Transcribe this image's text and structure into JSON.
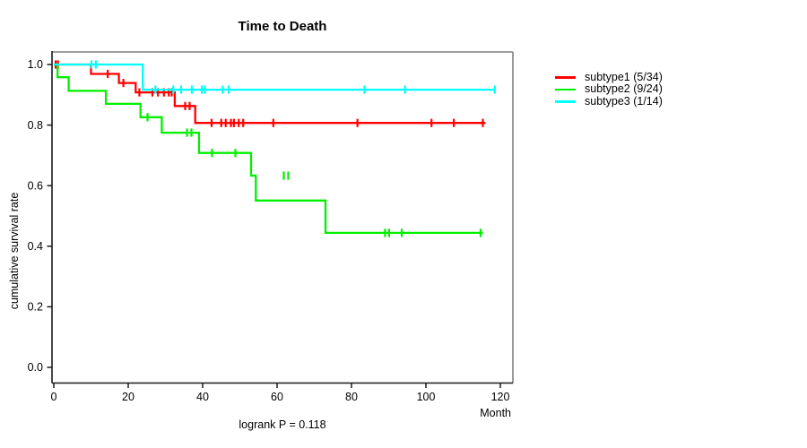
{
  "chart": {
    "title": "Time to Death",
    "ylabel": "cumulative survival rate",
    "xunit": "Month",
    "footnote": "logrank P = 0.118"
  },
  "chart_data": {
    "type": "line",
    "variant": "kaplan-meier-step",
    "title": "Time to Death",
    "xlabel": "Month",
    "ylabel": "cumulative survival rate",
    "annotation": "logrank P = 0.118",
    "xlim": [
      0,
      120
    ],
    "ylim": [
      0.0,
      1.0
    ],
    "x_ticks": [
      0,
      20,
      40,
      60,
      80,
      100,
      120
    ],
    "y_ticks": [
      0.0,
      0.2,
      0.4,
      0.6,
      0.8,
      1.0
    ],
    "grid": false,
    "legend_position": "right-outside",
    "frame_color_top_right": "#909090",
    "axis_color": "#1a1a1a",
    "series": [
      {
        "name": "subtype1",
        "legend_label": "subtype1 (5/34)",
        "color": "#ff0000",
        "n": 34,
        "events": 5,
        "steps": [
          [
            0,
            1.0
          ],
          [
            10,
            0.969
          ],
          [
            17.5,
            0.939
          ],
          [
            22,
            0.908
          ],
          [
            32.5,
            0.863
          ],
          [
            38,
            0.807
          ]
        ],
        "end_month": 116,
        "censor_marks": [
          [
            0.5,
            1.0
          ],
          [
            1.1,
            1.0
          ],
          [
            14.5,
            0.969
          ],
          [
            18.7,
            0.939
          ],
          [
            23,
            0.908
          ],
          [
            26.5,
            0.908
          ],
          [
            28,
            0.908
          ],
          [
            29.6,
            0.908
          ],
          [
            30.9,
            0.908
          ],
          [
            31.7,
            0.908
          ],
          [
            35.3,
            0.863
          ],
          [
            36.5,
            0.863
          ],
          [
            42.4,
            0.807
          ],
          [
            45,
            0.807
          ],
          [
            46.2,
            0.807
          ],
          [
            47.6,
            0.807
          ],
          [
            48.4,
            0.807
          ],
          [
            49.7,
            0.807
          ],
          [
            50.9,
            0.807
          ],
          [
            59,
            0.807
          ],
          [
            81.6,
            0.807
          ],
          [
            101.5,
            0.807
          ],
          [
            107.5,
            0.807
          ],
          [
            115.3,
            0.807
          ]
        ]
      },
      {
        "name": "subtype2",
        "legend_label": "subtype2 (9/24)",
        "color": "#00f000",
        "n": 24,
        "events": 9,
        "steps": [
          [
            0,
            1.0
          ],
          [
            1,
            0.958
          ],
          [
            4,
            0.913
          ],
          [
            14,
            0.87
          ],
          [
            23.3,
            0.826
          ],
          [
            29,
            0.775
          ],
          [
            39,
            0.708
          ],
          [
            53,
            0.633
          ],
          [
            54.3,
            0.551
          ],
          [
            73,
            0.444
          ]
        ],
        "end_month": 115.3,
        "censor_marks": [
          [
            25.2,
            0.826
          ],
          [
            35.8,
            0.775
          ],
          [
            37,
            0.775
          ],
          [
            42.5,
            0.708
          ],
          [
            48.8,
            0.708
          ],
          [
            61.8,
            0.633
          ],
          [
            63,
            0.633
          ],
          [
            89,
            0.444
          ],
          [
            90.1,
            0.444
          ],
          [
            93.5,
            0.444
          ],
          [
            114.7,
            0.444
          ]
        ]
      },
      {
        "name": "subtype3",
        "legend_label": "subtype3 (1/14)",
        "color": "#00ffff",
        "n": 14,
        "events": 1,
        "steps": [
          [
            0,
            1.0
          ],
          [
            23.9,
            0.917
          ]
        ],
        "end_month": 118.5,
        "censor_marks": [
          [
            10.1,
            1.0
          ],
          [
            11.3,
            1.0
          ],
          [
            27.3,
            0.917
          ],
          [
            32.1,
            0.917
          ],
          [
            34.2,
            0.917
          ],
          [
            37.1,
            0.917
          ],
          [
            39.8,
            0.917
          ],
          [
            40.6,
            0.917
          ],
          [
            45.4,
            0.917
          ],
          [
            47,
            0.917
          ],
          [
            83.5,
            0.917
          ],
          [
            94.4,
            0.917
          ],
          [
            118.5,
            0.917
          ]
        ]
      }
    ]
  }
}
